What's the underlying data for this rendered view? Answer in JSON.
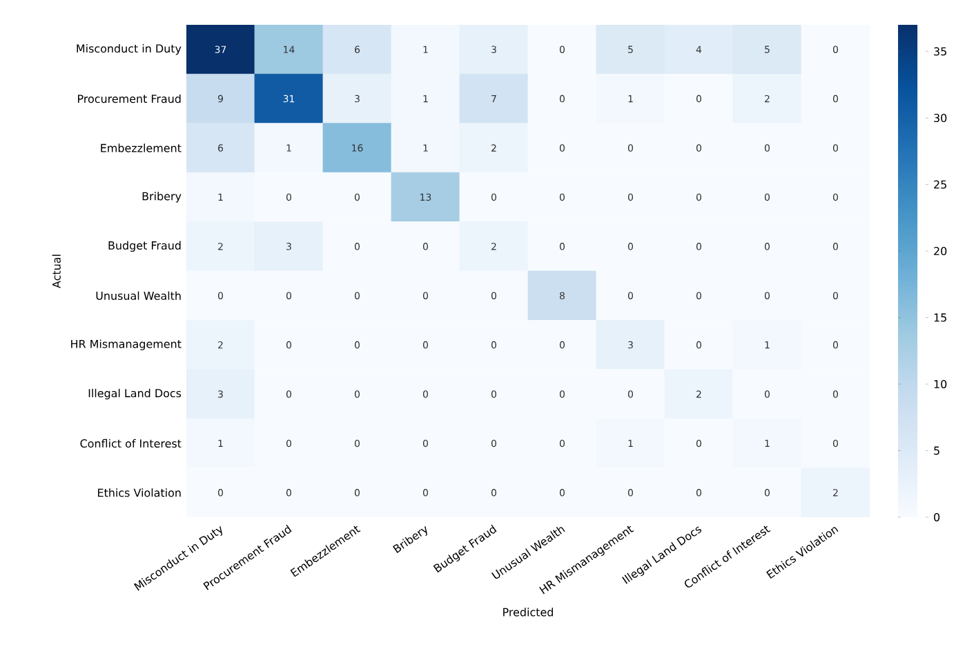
{
  "chart_data": {
    "type": "heatmap",
    "xlabel": "Predicted",
    "ylabel": "Actual",
    "categories": [
      "Misconduct in Duty",
      "Procurement Fraud",
      "Embezzlement",
      "Bribery",
      "Budget Fraud",
      "Unusual Wealth",
      "HR Mismanagement",
      "Illegal Land Docs",
      "Conflict of Interest",
      "Ethics Violation"
    ],
    "y_categories": [
      "Misconduct in Duty",
      "Procurement Fraud",
      "Embezzlement",
      "Bribery",
      "Budget Fraud",
      "Unusual Wealth",
      "HR Mismanagement",
      "Illegal Land Docs",
      "Conflict of Interest",
      "Ethics Violation"
    ],
    "cells": [
      [
        37,
        14,
        6,
        1,
        3,
        0,
        5,
        4,
        5,
        0
      ],
      [
        9,
        31,
        3,
        1,
        7,
        0,
        1,
        0,
        2,
        0
      ],
      [
        6,
        1,
        16,
        1,
        2,
        0,
        0,
        0,
        0,
        0
      ],
      [
        1,
        0,
        0,
        13,
        0,
        0,
        0,
        0,
        0,
        0
      ],
      [
        2,
        3,
        0,
        0,
        2,
        0,
        0,
        0,
        0,
        0
      ],
      [
        0,
        0,
        0,
        0,
        0,
        8,
        0,
        0,
        0,
        0
      ],
      [
        2,
        0,
        0,
        0,
        0,
        0,
        3,
        0,
        1,
        0
      ],
      [
        3,
        0,
        0,
        0,
        0,
        0,
        0,
        2,
        0,
        0
      ],
      [
        1,
        0,
        0,
        0,
        0,
        0,
        1,
        0,
        1,
        0
      ],
      [
        0,
        0,
        0,
        0,
        0,
        0,
        0,
        0,
        0,
        2
      ]
    ],
    "data_labels": true,
    "clim": [
      0,
      37
    ],
    "cticks": [
      0,
      5,
      10,
      15,
      20,
      25,
      30,
      35
    ]
  }
}
